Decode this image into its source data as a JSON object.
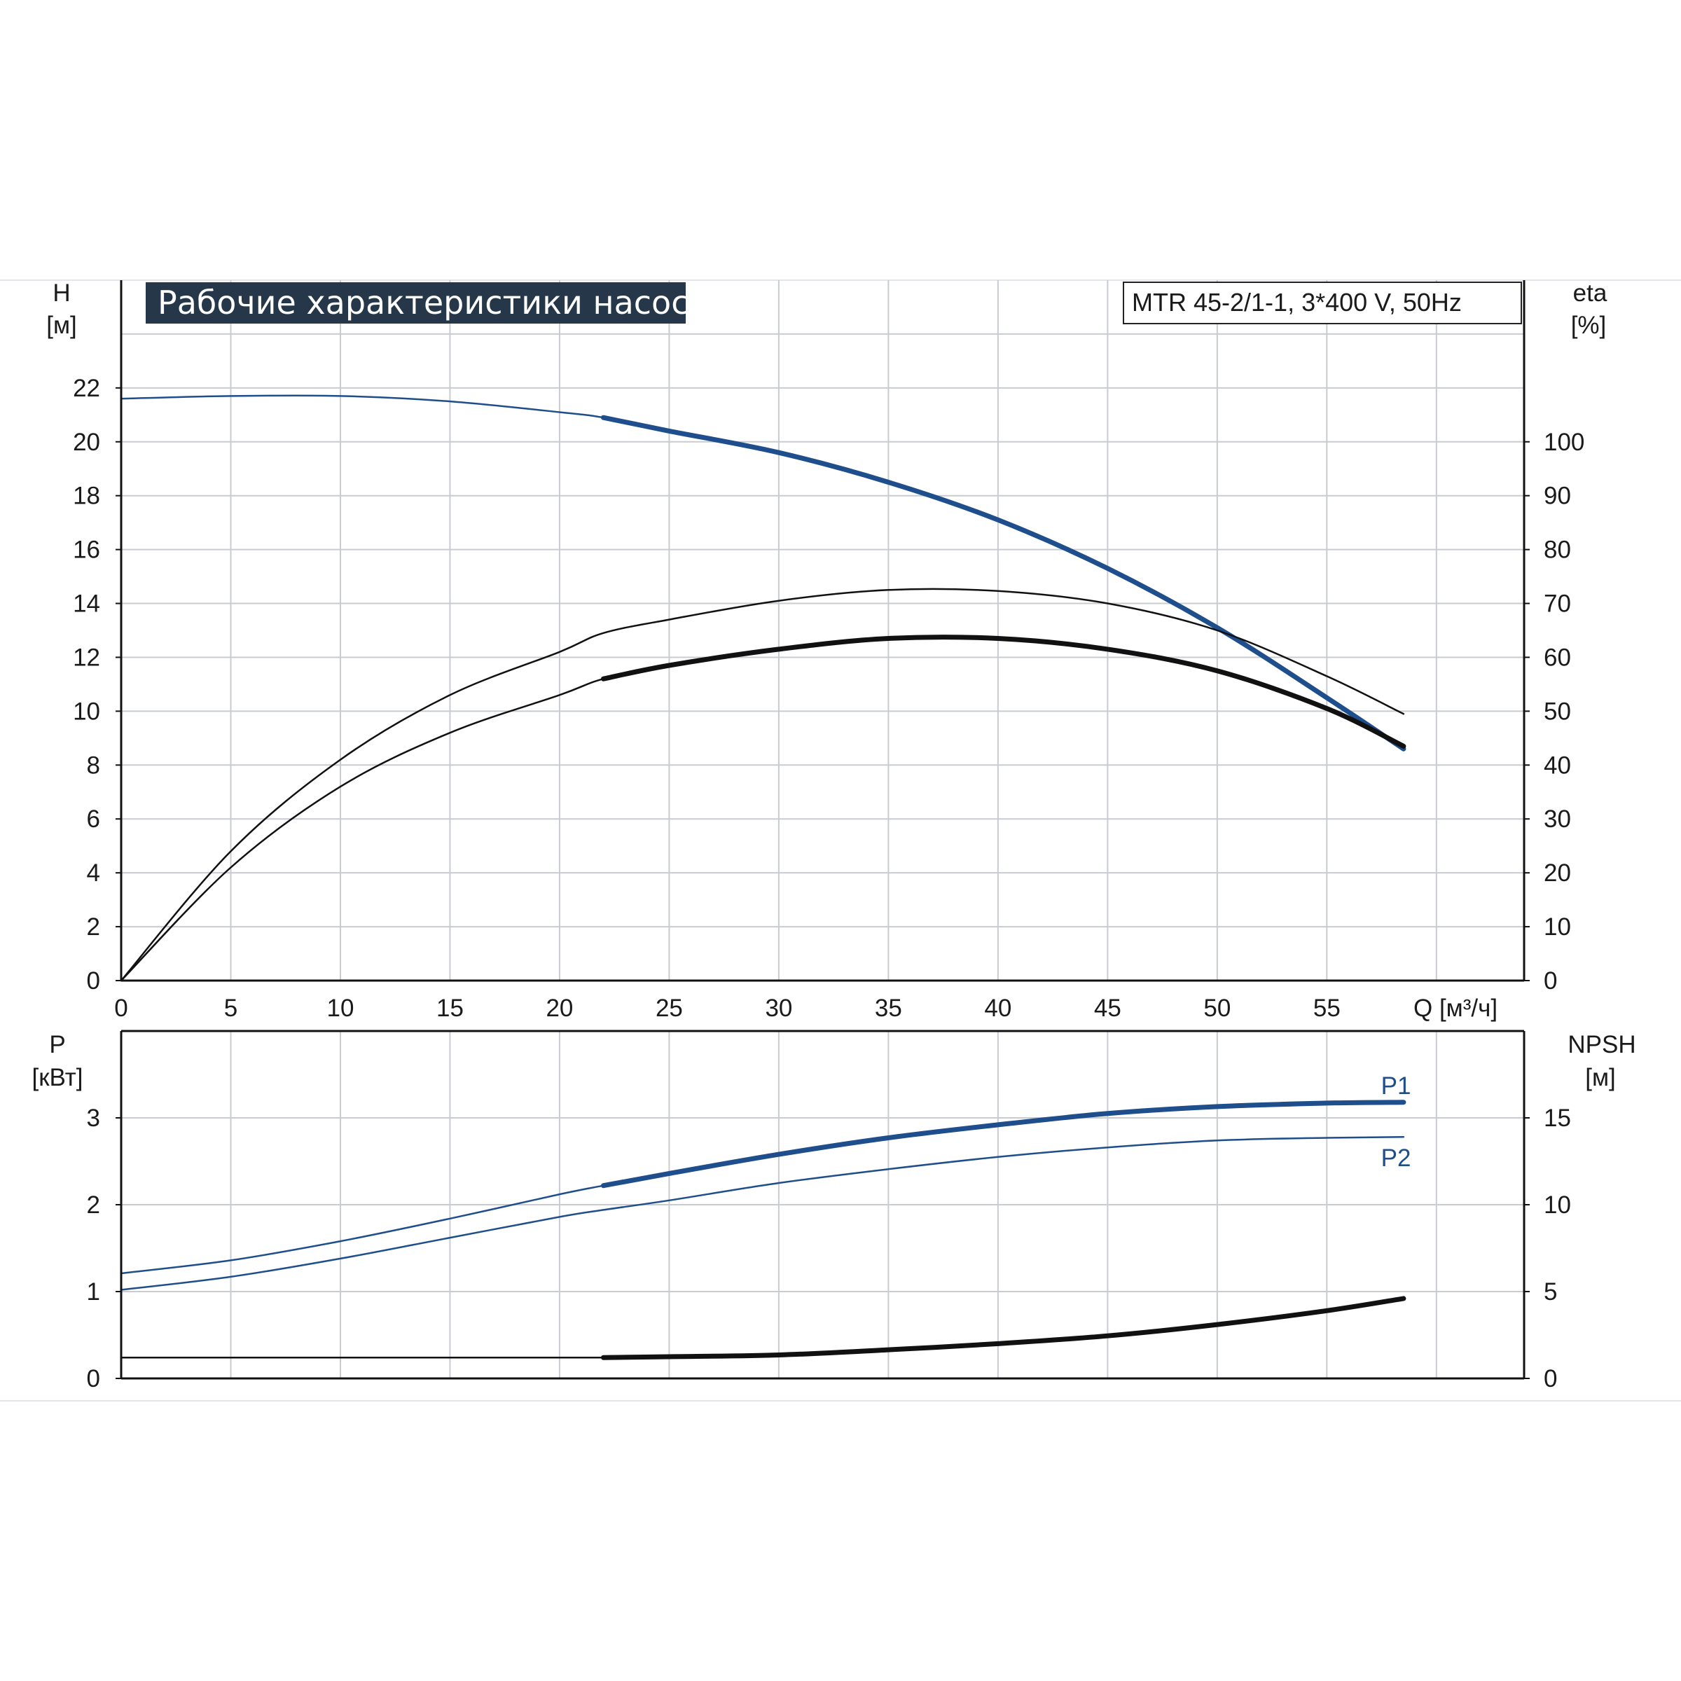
{
  "chart_data": [
    {
      "type": "line",
      "title": "Рабочие характеристики насоса",
      "subtitle": "MTR 45-2/1-1, 3*400 V, 50Hz",
      "xlabel": "Q [м³/ч]",
      "ylabel_left": [
        "H",
        "[м]"
      ],
      "ylabel_right": [
        "eta",
        "[%]"
      ],
      "xlim": [
        0,
        64
      ],
      "ylim_left": [
        0,
        26
      ],
      "ylim_right": [
        0,
        130
      ],
      "x_ticks": [
        "0",
        "5",
        "10",
        "15",
        "20",
        "25",
        "30",
        "35",
        "40",
        "45",
        "50",
        "55"
      ],
      "y_ticks_left": [
        "0",
        "2",
        "4",
        "6",
        "8",
        "10",
        "12",
        "14",
        "16",
        "18",
        "20",
        "22"
      ],
      "y_ticks_right": [
        "0",
        "10",
        "20",
        "30",
        "40",
        "50",
        "60",
        "70",
        "80",
        "90",
        "100"
      ],
      "grid": true,
      "series": [
        {
          "axis": "left",
          "color": "#1f4e8c",
          "x": [
            0,
            5,
            10,
            15,
            20,
            22,
            25,
            30,
            35,
            40,
            45,
            50,
            55,
            58.5
          ],
          "y": [
            21.6,
            21.7,
            21.7,
            21.5,
            21.1,
            20.9,
            20.4,
            19.6,
            18.5,
            17.1,
            15.3,
            13.1,
            10.5,
            8.6
          ],
          "bold_from": 22
        },
        {
          "axis": "right",
          "color": "#111111",
          "x": [
            0,
            5,
            10,
            15,
            20,
            22,
            25,
            30,
            35,
            40,
            45,
            50,
            55,
            58.5
          ],
          "y": [
            0,
            24,
            41,
            53,
            61,
            64.5,
            67,
            70.5,
            72.5,
            72.3,
            70,
            65,
            56.5,
            49.5
          ]
        },
        {
          "axis": "right",
          "color": "#111111",
          "x": [
            0,
            5,
            10,
            15,
            20,
            22,
            25,
            30,
            35,
            40,
            45,
            50,
            55,
            58.5
          ],
          "y": [
            0,
            21,
            36,
            46,
            53,
            56,
            58.5,
            61.5,
            63.5,
            63.5,
            61.5,
            57.5,
            50.5,
            43.5
          ],
          "bold_from": 22
        }
      ]
    },
    {
      "type": "line",
      "xlim": [
        0,
        64
      ],
      "ylabel_left": [
        "P",
        "[кВт]"
      ],
      "ylabel_right": [
        "NPSH",
        "[м]"
      ],
      "ylim_left": [
        0,
        4
      ],
      "ylim_right": [
        0,
        20
      ],
      "y_ticks_left": [
        "0",
        "1",
        "2",
        "3"
      ],
      "y_ticks_right": [
        "0",
        "5",
        "10",
        "15"
      ],
      "grid": true,
      "series": [
        {
          "name": "P1",
          "axis": "left",
          "color": "#1f4e8c",
          "x": [
            0,
            5,
            10,
            15,
            20,
            22,
            25,
            30,
            35,
            40,
            45,
            50,
            55,
            58.5
          ],
          "y": [
            1.21,
            1.36,
            1.58,
            1.84,
            2.12,
            2.22,
            2.36,
            2.58,
            2.77,
            2.92,
            3.05,
            3.13,
            3.17,
            3.18
          ],
          "bold_from": 22
        },
        {
          "name": "P2",
          "axis": "left",
          "color": "#1f4e8c",
          "x": [
            0,
            5,
            10,
            15,
            20,
            22,
            25,
            30,
            35,
            40,
            45,
            50,
            55,
            58.5
          ],
          "y": [
            1.02,
            1.17,
            1.38,
            1.62,
            1.86,
            1.94,
            2.05,
            2.25,
            2.41,
            2.55,
            2.66,
            2.74,
            2.77,
            2.78
          ]
        },
        {
          "axis": "right",
          "color": "#111111",
          "x": [
            0,
            5,
            10,
            15,
            20,
            22,
            25,
            30,
            35,
            40,
            45,
            50,
            55,
            58.5
          ],
          "y": [
            1.2,
            1.2,
            1.2,
            1.2,
            1.2,
            1.2,
            1.25,
            1.35,
            1.65,
            2.0,
            2.45,
            3.1,
            3.9,
            4.6
          ],
          "bold_from": 22
        }
      ]
    }
  ]
}
